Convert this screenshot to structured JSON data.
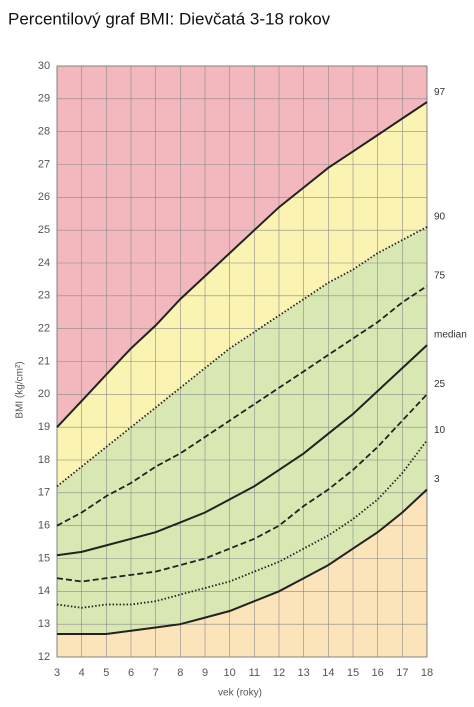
{
  "chart_data": {
    "type": "line",
    "title": "Percentilový graf BMI: Dievčatá 3-18 rokov",
    "xlabel": "vek (roky)",
    "ylabel": "BMI (kg/cm²)",
    "x": [
      3,
      4,
      5,
      6,
      7,
      8,
      9,
      10,
      11,
      12,
      13,
      14,
      15,
      16,
      17,
      18
    ],
    "xlim": [
      3,
      18
    ],
    "xticks": [
      3,
      4,
      5,
      6,
      7,
      8,
      9,
      10,
      11,
      12,
      13,
      14,
      15,
      16,
      17,
      18
    ],
    "ylim": [
      12,
      30
    ],
    "yticks": [
      12,
      13,
      14,
      15,
      16,
      17,
      18,
      19,
      20,
      21,
      22,
      23,
      24,
      25,
      26,
      27,
      28,
      29,
      30
    ],
    "grid": true,
    "fill_above": "#f3b8be",
    "series": [
      {
        "name": "3",
        "color": "#222222",
        "dash": "solid",
        "fill_below": "#fbe3ba",
        "values": [
          12.7,
          12.7,
          12.7,
          12.8,
          12.9,
          13.0,
          13.2,
          13.4,
          13.7,
          14.0,
          14.4,
          14.8,
          15.3,
          15.8,
          16.4,
          17.1
        ]
      },
      {
        "name": "10",
        "color": "#222222",
        "dash": "dotted",
        "fill_below": "#d9e8b2",
        "values": [
          13.6,
          13.5,
          13.6,
          13.6,
          13.7,
          13.9,
          14.1,
          14.3,
          14.6,
          14.9,
          15.3,
          15.7,
          16.2,
          16.8,
          17.6,
          18.6
        ]
      },
      {
        "name": "25",
        "color": "#222222",
        "dash": "dashed",
        "fill_below": "#d9e8b2",
        "values": [
          14.4,
          14.3,
          14.4,
          14.5,
          14.6,
          14.8,
          15.0,
          15.3,
          15.6,
          16.0,
          16.6,
          17.1,
          17.7,
          18.4,
          19.2,
          20.0
        ]
      },
      {
        "name": "median",
        "color": "#222222",
        "dash": "solid",
        "fill_below": "#d9e8b2",
        "values": [
          15.1,
          15.2,
          15.4,
          15.6,
          15.8,
          16.1,
          16.4,
          16.8,
          17.2,
          17.7,
          18.2,
          18.8,
          19.4,
          20.1,
          20.8,
          21.5
        ]
      },
      {
        "name": "75",
        "color": "#222222",
        "dash": "dashed",
        "fill_below": "#d9e8b2",
        "values": [
          16.0,
          16.4,
          16.9,
          17.3,
          17.8,
          18.2,
          18.7,
          19.2,
          19.7,
          20.2,
          20.7,
          21.2,
          21.7,
          22.2,
          22.8,
          23.3
        ]
      },
      {
        "name": "90",
        "color": "#222222",
        "dash": "dotted",
        "fill_below": "#d9e8b2",
        "values": [
          17.2,
          17.8,
          18.4,
          19.0,
          19.6,
          20.2,
          20.8,
          21.4,
          21.9,
          22.4,
          22.9,
          23.4,
          23.8,
          24.3,
          24.7,
          25.1
        ]
      },
      {
        "name": "97",
        "color": "#222222",
        "dash": "solid",
        "fill_below": "#fbf3b2",
        "values": [
          19.0,
          19.8,
          20.6,
          21.4,
          22.1,
          22.9,
          23.6,
          24.3,
          25.0,
          25.7,
          26.3,
          26.9,
          27.4,
          27.9,
          28.4,
          28.9
        ]
      }
    ]
  }
}
